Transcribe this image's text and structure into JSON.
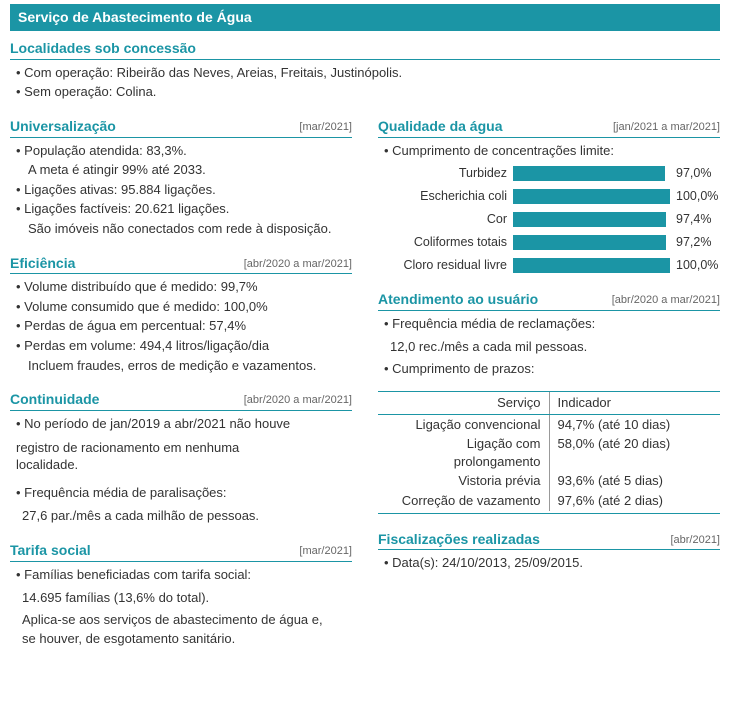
{
  "banner": "Serviço de Abastecimento de Água",
  "localidades": {
    "title": "Localidades sob concessão",
    "items": [
      "Com operação: Ribeirão das Neves, Areias, Freitais, Justinópolis.",
      "Sem operação: Colina."
    ]
  },
  "universalizacao": {
    "title": "Universalização",
    "date": "[mar/2021]",
    "items": [
      {
        "text": "População atendida: 83,3%.",
        "sub": "A meta é atingir 99% até 2033."
      },
      {
        "text": "Ligações ativas: 95.884 ligações."
      },
      {
        "text": "Ligações factíveis: 20.621 ligações.",
        "sub": "São imóveis não conectados com rede à disposição."
      }
    ]
  },
  "eficiencia": {
    "title": "Eficiência",
    "date": "[abr/2020 a mar/2021]",
    "items": [
      {
        "text": "Volume distribuído que é medido: 99,7%"
      },
      {
        "text": "Volume consumido que é medido: 100,0%"
      },
      {
        "text": "Perdas de água em percentual: 57,4%"
      },
      {
        "text": "Perdas em volume: 494,4 litros/ligação/dia",
        "sub": "Incluem fraudes, erros de medição e vazamentos."
      }
    ]
  },
  "continuidade": {
    "title": "Continuidade",
    "date": "[abr/2020 a mar/2021]",
    "para1a": "No período de jan/2019 a abr/2021 não houve",
    "para1b": "registro de racionamento em nenhuma",
    "para1c": "localidade.",
    "para2a": "Frequência média de paralisações:",
    "para2b": "27,6 par./mês a cada milhão de pessoas."
  },
  "tarifa": {
    "title": "Tarifa social",
    "date": "[mar/2021]",
    "line1": "Famílias beneficiadas com tarifa social:",
    "line2": "14.695 famílias (13,6% do total).",
    "line3": "Aplica-se aos serviços de abastecimento de água e,",
    "line4": "se houver, de esgotamento sanitário."
  },
  "qualidade": {
    "title": "Qualidade da água",
    "date": "[jan/2021 a mar/2021]",
    "lead": "Cumprimento de concentrações limite:",
    "bars": [
      {
        "label": "Turbidez",
        "value": 97.0,
        "text": "97,0%"
      },
      {
        "label": "Escherichia coli",
        "value": 100.0,
        "text": "100,0%"
      },
      {
        "label": "Cor",
        "value": 97.4,
        "text": "97,4%"
      },
      {
        "label": "Coliformes totais",
        "value": 97.2,
        "text": "97,2%"
      },
      {
        "label": "Cloro residual livre",
        "value": 100.0,
        "text": "100,0%"
      }
    ],
    "bar_color": "#1b95a5"
  },
  "atendimento": {
    "title": "Atendimento ao usuário",
    "date": "[abr/2020 a mar/2021]",
    "line1": "Frequência média de reclamações:",
    "line2": "12,0 rec./mês a cada mil pessoas.",
    "line3": "Cumprimento de prazos:",
    "table": {
      "head1": "Serviço",
      "head2": "Indicador",
      "rows": [
        {
          "c1": "Ligação convencional",
          "c2": "94,7% (até 10 dias)"
        },
        {
          "c1": "Ligação com prolongamento",
          "c2": "58,0% (até 20 dias)"
        },
        {
          "c1": "Vistoria prévia",
          "c2": "93,6% (até 5 dias)"
        },
        {
          "c1": "Correção de vazamento",
          "c2": "97,6% (até 2 dias)"
        }
      ]
    }
  },
  "fiscalizacoes": {
    "title": "Fiscalizações realizadas",
    "date": "[abr/2021]",
    "line": "Data(s): 24/10/2013, 25/09/2015."
  }
}
